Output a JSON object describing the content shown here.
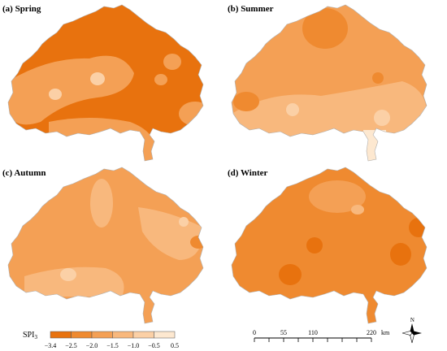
{
  "panels": [
    {
      "label": "(a) Spring"
    },
    {
      "label": "(b) Summer"
    },
    {
      "label": "(c) Autumn"
    },
    {
      "label": "(d) Winter"
    }
  ],
  "legend": {
    "title": "SPI",
    "title_subscript": "3",
    "ticks": [
      "−3.4",
      "−2.5",
      "−2.0",
      "−1.5",
      "−1.0",
      "−0.5",
      "0.5"
    ],
    "classes": [
      {
        "range": [
          -3.4,
          -2.5
        ],
        "color": "#e8720e"
      },
      {
        "range": [
          -2.5,
          -2.0
        ],
        "color": "#ef8a30"
      },
      {
        "range": [
          -2.0,
          -1.5
        ],
        "color": "#f4a055"
      },
      {
        "range": [
          -1.5,
          -1.0
        ],
        "color": "#f8b87d"
      },
      {
        "range": [
          -1.0,
          -0.5
        ],
        "color": "#fbd0a6"
      },
      {
        "range": [
          -0.5,
          0.5
        ],
        "color": "#fde8d0"
      }
    ]
  },
  "scale_bar": {
    "ticks": [
      "0",
      "55",
      "110",
      "220"
    ],
    "unit": "km"
  },
  "north_arrow": {
    "letter": "N",
    "icon": "compass-north-arrow-icon"
  }
}
